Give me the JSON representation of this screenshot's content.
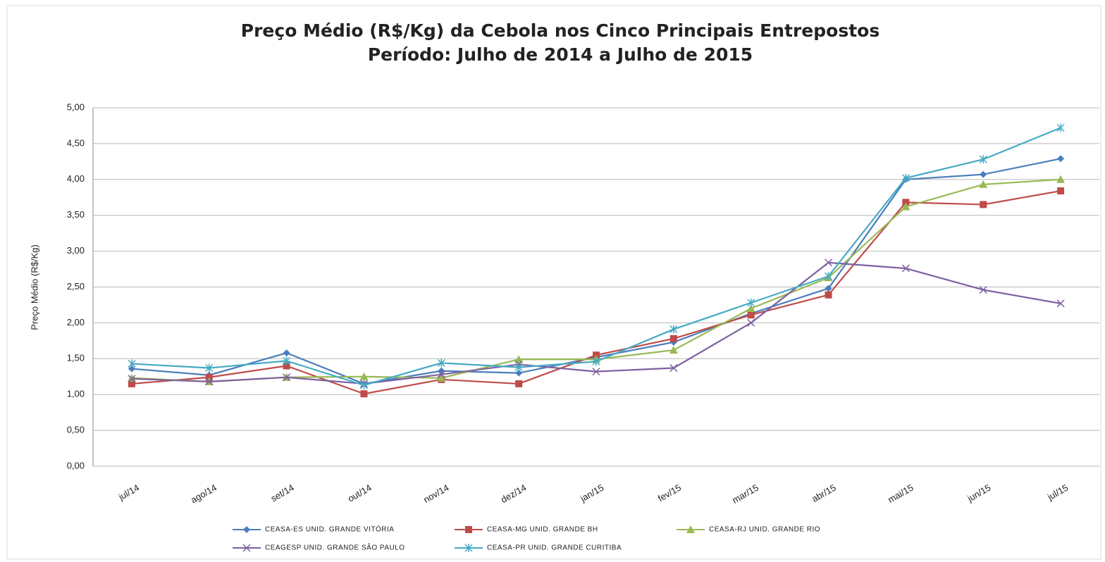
{
  "chart_data": {
    "type": "line",
    "title": "Preço Médio (R$/Kg) da Cebola nos Cinco Principais Entrepostos",
    "subtitle": "Período: Julho de 2014 a Julho de 2015",
    "y_label": "Preço Médio (R$/Kg)",
    "categories": [
      "jul/14",
      "ago/14",
      "set/14",
      "out/14",
      "nov/14",
      "dez/14",
      "jan/15",
      "fev/15",
      "mar/15",
      "abr/15",
      "mai/15",
      "jun/15",
      "jul/15"
    ],
    "series": [
      {
        "name": "CEASA-ES UNID. GRANDE VITÓRIA",
        "color": "#4a7ebb",
        "marker": "diamond",
        "values": [
          1.36,
          1.27,
          1.58,
          1.15,
          1.33,
          1.3,
          1.52,
          1.73,
          2.13,
          2.48,
          4.0,
          4.07,
          4.29
        ]
      },
      {
        "name": "CEASA-MG UNID. GRANDE BH",
        "color": "#be4b48",
        "marker": "square",
        "values": [
          1.15,
          1.24,
          1.4,
          1.01,
          1.21,
          1.15,
          1.55,
          1.78,
          2.11,
          2.39,
          3.68,
          3.65,
          3.84
        ]
      },
      {
        "name": "CEASA-RJ UNID. GRANDE RIO",
        "color": "#98b954",
        "marker": "triangle",
        "values": [
          1.23,
          1.18,
          1.24,
          1.25,
          1.23,
          1.49,
          1.49,
          1.62,
          2.2,
          2.63,
          3.62,
          3.93,
          4.0
        ]
      },
      {
        "name": "CEAGESP UNID. GRANDE SÃO PAULO",
        "color": "#7d60a0",
        "marker": "x",
        "values": [
          1.22,
          1.18,
          1.24,
          1.15,
          1.28,
          1.42,
          1.32,
          1.37,
          2.0,
          2.84,
          2.76,
          2.46,
          2.27
        ]
      },
      {
        "name": "CEASA-PR UNID. GRANDE CURITIBA",
        "color": "#46aac5",
        "marker": "star",
        "values": [
          1.43,
          1.37,
          1.47,
          1.13,
          1.44,
          1.38,
          1.46,
          1.91,
          2.28,
          2.65,
          4.02,
          4.28,
          4.72
        ]
      }
    ],
    "ylim": [
      0,
      5
    ],
    "yticks": [
      {
        "value": 0,
        "label": "0,00"
      },
      {
        "value": 0.5,
        "label": "0,50"
      },
      {
        "value": 1,
        "label": "1,00"
      },
      {
        "value": 1.5,
        "label": "1,50"
      },
      {
        "value": 2,
        "label": "2,00"
      },
      {
        "value": 2.5,
        "label": "2,50"
      },
      {
        "value": 3,
        "label": "3,00"
      },
      {
        "value": 3.5,
        "label": "3,50"
      },
      {
        "value": 4,
        "label": "4,00"
      },
      {
        "value": 4.5,
        "label": "4,50"
      },
      {
        "value": 5,
        "label": "5,00"
      }
    ],
    "grid": true
  }
}
